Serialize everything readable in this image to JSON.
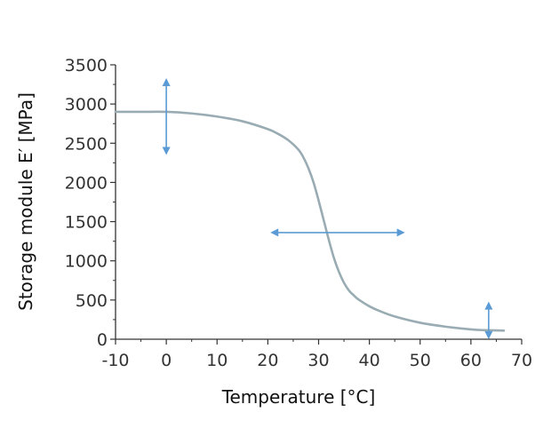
{
  "chart_data": {
    "type": "line",
    "xlabel": "Temperature [°C]",
    "ylabel": "Storage module  E′ [MPa]",
    "xlim": [
      -10,
      70
    ],
    "ylim": [
      0,
      3500
    ],
    "xticks": [
      -10,
      0,
      10,
      20,
      30,
      40,
      50,
      60,
      70
    ],
    "xtick_labels": [
      "-10",
      "0",
      "10",
      "20",
      "30",
      "40",
      "50",
      "60",
      "70"
    ],
    "yticks": [
      0,
      500,
      1000,
      1500,
      2000,
      2500,
      3000,
      3500
    ],
    "ytick_labels": [
      "0",
      "500",
      "1000",
      "1500",
      "2000",
      "2500",
      "3000",
      "3500"
    ],
    "grid": false,
    "series": [
      {
        "name": "Storage modulus E'",
        "color": "#9aacb3",
        "x": [
          -10,
          -5,
          0,
          5,
          10,
          15,
          20,
          22,
          24,
          26,
          27,
          28,
          29,
          30,
          31,
          32,
          33,
          34,
          35,
          36,
          37,
          38,
          40,
          42,
          45,
          50,
          55,
          60,
          63,
          66.5
        ],
        "y": [
          2900,
          2900,
          2900,
          2880,
          2840,
          2780,
          2680,
          2620,
          2540,
          2420,
          2320,
          2180,
          2000,
          1770,
          1520,
          1270,
          1040,
          860,
          720,
          620,
          555,
          500,
          420,
          360,
          290,
          210,
          160,
          125,
          115,
          110
        ]
      }
    ],
    "annotations": [
      {
        "type": "double-arrow",
        "direction": "vertical",
        "x": 0,
        "y_from": 2350,
        "y_to": 3330,
        "color": "#5b9bd5"
      },
      {
        "type": "double-arrow",
        "direction": "horizontal",
        "y": 1360,
        "x_from": 20.5,
        "x_to": 47,
        "color": "#5b9bd5"
      },
      {
        "type": "double-arrow",
        "direction": "vertical",
        "x": 63.5,
        "y_from": 0,
        "y_to": 480,
        "color": "#5b9bd5"
      }
    ]
  }
}
